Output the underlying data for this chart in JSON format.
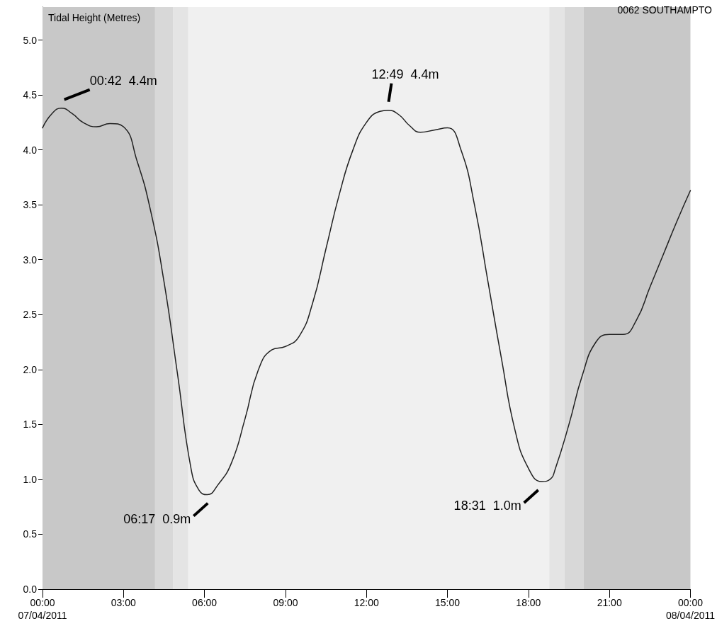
{
  "chart_data": {
    "type": "line",
    "title": "0062 SOUTHAMPTO",
    "ylabel": "Tidal Height (Metres)",
    "x": [
      0,
      0.35,
      0.7,
      1.1,
      1.5,
      2,
      2.5,
      3,
      3.5,
      4,
      4.5,
      5,
      5.5,
      5.8,
      6.1,
      6.5,
      7,
      7.5,
      8,
      8.5,
      9,
      9.5,
      10,
      10.5,
      11,
      11.5,
      12,
      12.5,
      12.8,
      13.2,
      13.6,
      14,
      14.5,
      15,
      15.5,
      16,
      16.5,
      17,
      17.5,
      18,
      18.5,
      18.8,
      19,
      19.5,
      20,
      20.5,
      21,
      21.5,
      22,
      22.5,
      23,
      23.5,
      24
    ],
    "series": [
      {
        "color": "#202020",
        "values": [
          4.2,
          4.33,
          4.38,
          4.33,
          4.25,
          4.21,
          4.24,
          4.21,
          3.9,
          3.45,
          2.8,
          1.96,
          1.1,
          0.9,
          0.86,
          0.95,
          1.15,
          1.55,
          2.0,
          2.18,
          2.21,
          2.3,
          2.6,
          3.1,
          3.6,
          4.0,
          4.25,
          4.35,
          4.36,
          4.32,
          4.22,
          4.16,
          4.18,
          4.2,
          4.0,
          3.5,
          2.8,
          2.1,
          1.45,
          1.1,
          0.98,
          1.0,
          1.1,
          1.5,
          1.95,
          2.25,
          2.32,
          2.32,
          2.45,
          2.75,
          3.05,
          3.35,
          3.63
        ]
      }
    ],
    "xlim": [
      0,
      24
    ],
    "xticks": [
      {
        "value": 0,
        "label": "00:00\n07/04/2011"
      },
      {
        "value": 3,
        "label": "03:00"
      },
      {
        "value": 6,
        "label": "06:00"
      },
      {
        "value": 9,
        "label": "09:00"
      },
      {
        "value": 12,
        "label": "12:00"
      },
      {
        "value": 15,
        "label": "15:00"
      },
      {
        "value": 18,
        "label": "18:00"
      },
      {
        "value": 21,
        "label": "21:00"
      },
      {
        "value": 24,
        "label": "00:00\n08/04/2011"
      }
    ],
    "ylim": [
      0,
      5.3
    ],
    "yticks": [
      {
        "value": 0,
        "label": "0.0"
      },
      {
        "value": 0.5,
        "label": "0.5"
      },
      {
        "value": 1,
        "label": "1.0"
      },
      {
        "value": 1.5,
        "label": "1.5"
      },
      {
        "value": 2,
        "label": "2.0"
      },
      {
        "value": 2.5,
        "label": "2.5"
      },
      {
        "value": 3,
        "label": "3.0"
      },
      {
        "value": 3.5,
        "label": "3.5"
      },
      {
        "value": 4,
        "label": "4.0"
      },
      {
        "value": 4.5,
        "label": "4.5"
      },
      {
        "value": 5,
        "label": "5.0"
      }
    ],
    "bands": [
      {
        "axis": "x",
        "from": 0,
        "to": 4.17,
        "color": "#c8c8c8"
      },
      {
        "axis": "x",
        "from": 4.17,
        "to": 4.83,
        "color": "#d8d8d8"
      },
      {
        "axis": "x",
        "from": 4.83,
        "to": 5.4,
        "color": "#e4e4e4"
      },
      {
        "axis": "x",
        "from": 5.4,
        "to": 18.77,
        "color": "#f0f0f0"
      },
      {
        "axis": "x",
        "from": 18.77,
        "to": 19.33,
        "color": "#e4e4e4"
      },
      {
        "axis": "x",
        "from": 19.33,
        "to": 20.05,
        "color": "#d8d8d8"
      },
      {
        "axis": "x",
        "from": 20.05,
        "to": 24,
        "color": "#c8c8c8"
      }
    ],
    "annotations": [
      {
        "text": "00:42  4.4m",
        "x": 0.7,
        "y": 4.38
      },
      {
        "text": "06:17  0.9m",
        "x": 6.28,
        "y": 0.86
      },
      {
        "text": "12:49  4.4m",
        "x": 12.82,
        "y": 4.36
      },
      {
        "text": "18:31  1.0m",
        "x": 18.52,
        "y": 0.98
      }
    ],
    "grid": false,
    "marker": "none",
    "line_style": "solid"
  }
}
